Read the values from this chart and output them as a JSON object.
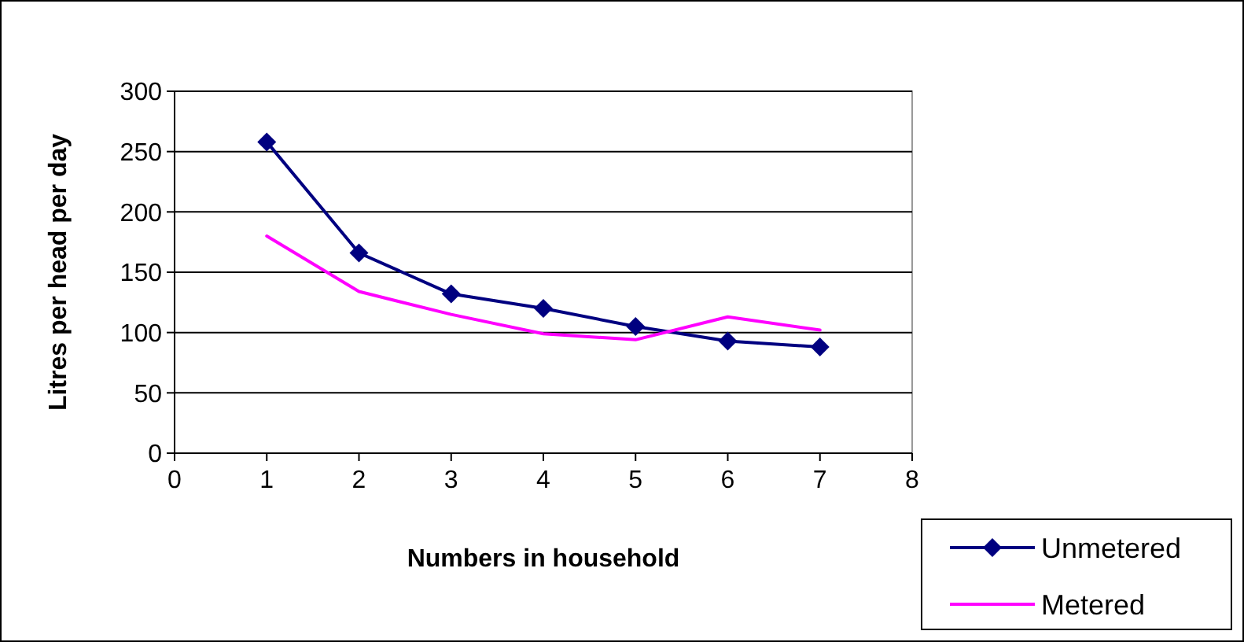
{
  "chart_data": {
    "type": "line",
    "xlabel": "Numbers in household",
    "ylabel": "Litres per head per day",
    "x": [
      1,
      2,
      3,
      4,
      5,
      6,
      7
    ],
    "xlim": [
      0,
      8
    ],
    "xticks": [
      0,
      1,
      2,
      3,
      4,
      5,
      6,
      7,
      8
    ],
    "ylim": [
      0,
      300
    ],
    "yticks": [
      0,
      50,
      100,
      150,
      200,
      250,
      300
    ],
    "grid": "y",
    "legend": "bottom right",
    "series": [
      {
        "name": "Unmetered",
        "color": "#000080",
        "marker": "diamond",
        "values": [
          258,
          166,
          132,
          120,
          105,
          93,
          88
        ]
      },
      {
        "name": "Metered",
        "color": "#ff00ff",
        "marker": "none",
        "values": [
          180,
          134,
          115,
          99,
          94,
          113,
          102
        ]
      }
    ]
  }
}
